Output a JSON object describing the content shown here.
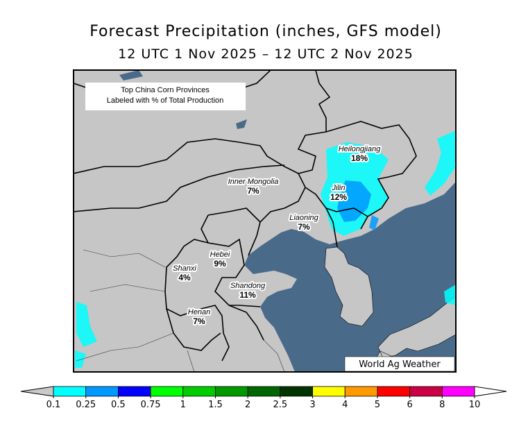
{
  "title": "Forecast Precipitation (inches, GFS model)",
  "subtitle": "12 UTC 1 Nov 2025 – 12 UTC 2 Nov 2025",
  "note": {
    "line1": "Top China Corn Provinces",
    "line2": "Labeled with % of Total Production"
  },
  "provinces": [
    {
      "name": "Heilongjiang",
      "share": "18%"
    },
    {
      "name": "Inner Mongolia",
      "share": "7%"
    },
    {
      "name": "Jilin",
      "share": "12%"
    },
    {
      "name": "Liaoning",
      "share": "7%"
    },
    {
      "name": "Hebei",
      "share": "9%"
    },
    {
      "name": "Shanxi",
      "share": "4%"
    },
    {
      "name": "Shandong",
      "share": "11%"
    },
    {
      "name": "Henan",
      "share": "7%"
    }
  ],
  "credit": "World Ag Weather",
  "colorbar": {
    "ticks": [
      0.1,
      0.25,
      0.5,
      0.75,
      1,
      1.5,
      2,
      2.5,
      3,
      4,
      5,
      6,
      8,
      10
    ],
    "colors": [
      "#00ffff",
      "#0099ff",
      "#0000ff",
      "#00ff00",
      "#00cc00",
      "#009900",
      "#006600",
      "#003300",
      "#ffff00",
      "#ff9900",
      "#ff0000",
      "#cc0044",
      "#ff00ff",
      "#9944cc"
    ],
    "under_color": "#c8c8c8",
    "over_color": "#ffffff"
  }
}
